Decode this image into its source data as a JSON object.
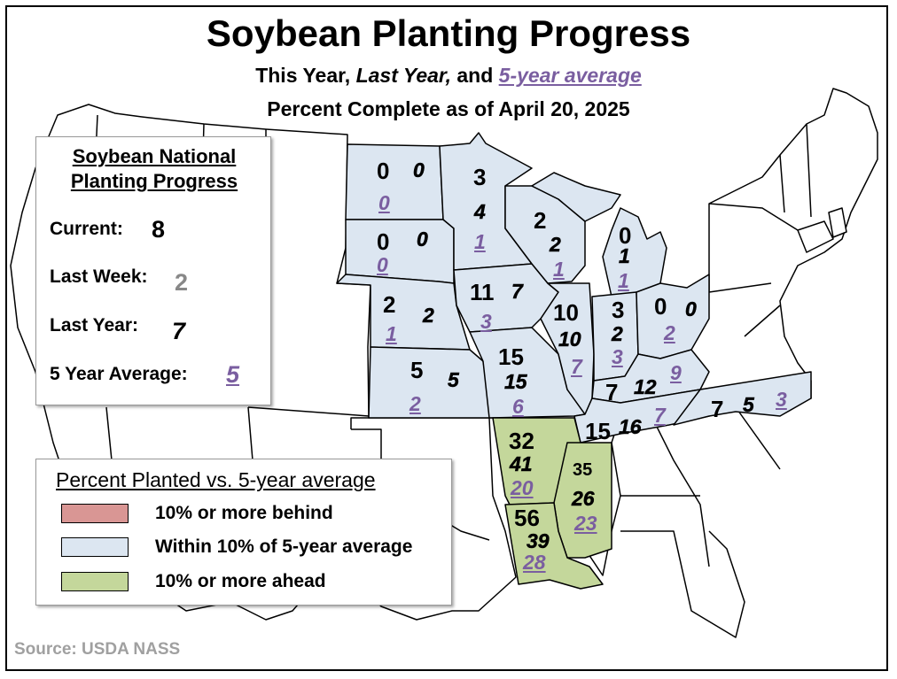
{
  "title": "Soybean Planting Progress",
  "subtitle": {
    "pre": "This Year, ",
    "last_year": "Last Year,",
    "mid": " and ",
    "avg": "5-year average"
  },
  "as_of": "Percent Complete as of April 20, 2025",
  "national": {
    "header_line1": "Soybean National",
    "header_line2": "Planting Progress",
    "current_label": "Current:",
    "current": "8",
    "last_week_label": "Last Week:",
    "last_week": "2",
    "last_year_label": "Last Year:",
    "last_year": "7",
    "avg_label": "5 Year Average:",
    "avg": "5"
  },
  "legend": {
    "title": "Percent Planted vs. 5-year average",
    "items": [
      {
        "label": "10% or more behind",
        "color": "#d99694"
      },
      {
        "label": "Within 10% of 5-year average",
        "color": "#dce6f1"
      },
      {
        "label": "10% or more ahead",
        "color": "#c4d79b"
      }
    ]
  },
  "colors": {
    "within": "#dce6f1",
    "ahead": "#c4d79b",
    "behind": "#d99694",
    "avg_text": "#7a5ea0"
  },
  "states": [
    {
      "name": "North Dakota",
      "current": "0",
      "last_year": "0",
      "avg": "0",
      "status": "within"
    },
    {
      "name": "South Dakota",
      "current": "0",
      "last_year": "0",
      "avg": "0",
      "status": "within"
    },
    {
      "name": "Nebraska",
      "current": "2",
      "last_year": "2",
      "avg": "1",
      "status": "within"
    },
    {
      "name": "Kansas",
      "current": "5",
      "last_year": "5",
      "avg": "2",
      "status": "within"
    },
    {
      "name": "Minnesota",
      "current": "3",
      "last_year": "4",
      "avg": "1",
      "status": "within"
    },
    {
      "name": "Iowa",
      "current": "11",
      "last_year": "7",
      "avg": "3",
      "status": "within"
    },
    {
      "name": "Missouri",
      "current": "15",
      "last_year": "15",
      "avg": "6",
      "status": "within"
    },
    {
      "name": "Wisconsin",
      "current": "2",
      "last_year": "2",
      "avg": "1",
      "status": "within"
    },
    {
      "name": "Illinois",
      "current": "10",
      "last_year": "10",
      "avg": "7",
      "status": "within"
    },
    {
      "name": "Michigan",
      "current": "0",
      "last_year": "1",
      "avg": "1",
      "status": "within"
    },
    {
      "name": "Indiana",
      "current": "3",
      "last_year": "2",
      "avg": "3",
      "status": "within"
    },
    {
      "name": "Ohio",
      "current": "0",
      "last_year": "0",
      "avg": "2",
      "status": "within"
    },
    {
      "name": "Kentucky",
      "current": "7",
      "last_year": "12",
      "avg": "9",
      "status": "within"
    },
    {
      "name": "Tennessee",
      "current": "15",
      "last_year": "16",
      "avg": "7",
      "status": "within"
    },
    {
      "name": "North Carolina",
      "current": "7",
      "last_year": "5",
      "avg": "3",
      "status": "within"
    },
    {
      "name": "Arkansas",
      "current": "32",
      "last_year": "41",
      "avg": "20",
      "status": "ahead"
    },
    {
      "name": "Mississippi",
      "current": "35",
      "last_year": "26",
      "avg": "23",
      "status": "ahead"
    },
    {
      "name": "Louisiana",
      "current": "56",
      "last_year": "39",
      "avg": "28",
      "status": "ahead"
    }
  ],
  "source": "Source: USDA NASS"
}
